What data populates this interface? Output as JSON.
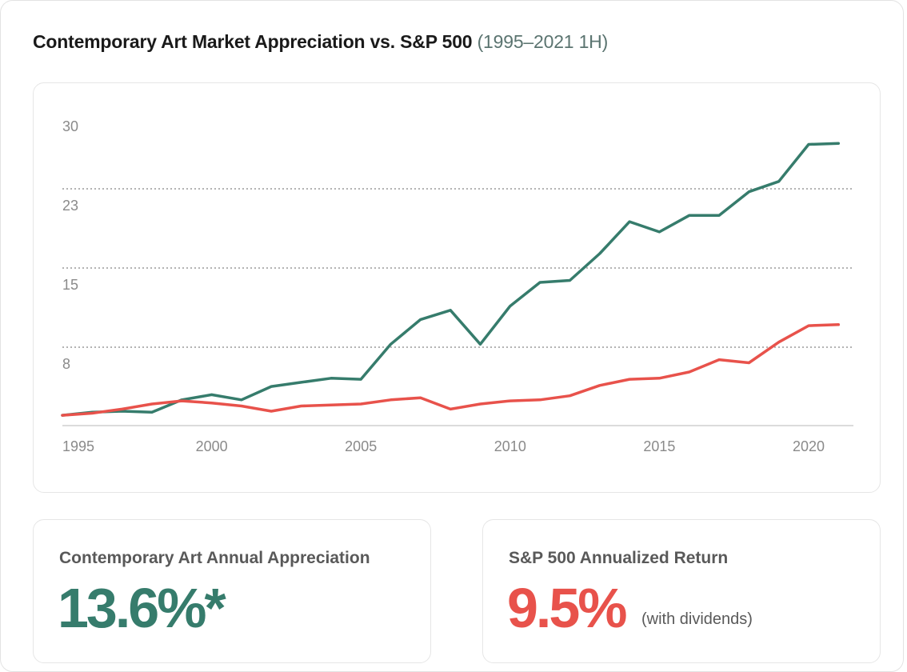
{
  "header": {
    "title": "Contemporary Art Market Appreciation vs. S&P 500",
    "subtitle": "(1995–2021 1H)"
  },
  "colors": {
    "art": "#367c6c",
    "sp500": "#e8524b",
    "grid": "#9a9a9a",
    "axis": "#cfcfcf"
  },
  "chart_data": {
    "type": "line",
    "title": "Contemporary Art Market Appreciation vs. S&P 500",
    "xlabel": "",
    "ylabel": "",
    "y_ticks": [
      30,
      23,
      15,
      8
    ],
    "x_ticks": [
      "1995",
      "2000",
      "2005",
      "2010",
      "2015",
      "2020"
    ],
    "xlim": [
      1995,
      2021.5
    ],
    "ylim": [
      0,
      30.6
    ],
    "grid": "dotted horizontal",
    "x": [
      1995,
      1996,
      1997,
      1998,
      1999,
      2000,
      2001,
      2002,
      2003,
      2004,
      2005,
      2006,
      2007,
      2008,
      2009,
      2010,
      2011,
      2012,
      2013,
      2014,
      2015,
      2016,
      2017,
      2018,
      2019,
      2020,
      2021
    ],
    "series": [
      {
        "key": "art",
        "values": [
          1.0,
          1.3,
          1.4,
          1.3,
          2.5,
          3.0,
          2.5,
          3.8,
          4.2,
          4.6,
          4.5,
          7.9,
          10.3,
          11.2,
          7.9,
          11.6,
          13.9,
          14.1,
          16.7,
          19.8,
          18.8,
          20.4,
          20.4,
          22.7,
          23.7,
          27.3,
          27.4
        ]
      },
      {
        "key": "sp500",
        "values": [
          1.0,
          1.2,
          1.6,
          2.1,
          2.4,
          2.2,
          1.9,
          1.4,
          1.9,
          2.0,
          2.1,
          2.5,
          2.7,
          1.6,
          2.1,
          2.4,
          2.5,
          2.9,
          3.9,
          4.5,
          4.6,
          5.2,
          6.4,
          6.1,
          8.1,
          9.7,
          9.8
        ]
      }
    ]
  },
  "stats": {
    "art": {
      "label": "Contemporary Art Annual Appreciation",
      "value": "13.6%*"
    },
    "sp500": {
      "label": "S&P 500 Annualized Return",
      "value": "9.5%",
      "note": "(with dividends)"
    }
  }
}
